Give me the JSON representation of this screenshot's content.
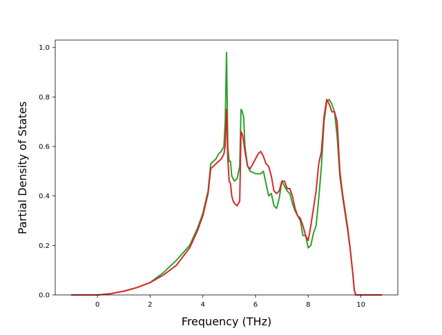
{
  "chart_data": {
    "type": "line",
    "xlabel": "Frequency (THz)",
    "ylabel": "Partial Density of States",
    "xlim": [
      -1.6,
      11.4
    ],
    "ylim": [
      0.0,
      1.03
    ],
    "x_ticks": [
      "0",
      "2",
      "4",
      "6",
      "8",
      "10"
    ],
    "y_ticks": [
      "0.0",
      "0.2",
      "0.4",
      "0.6",
      "0.8",
      "1.0"
    ],
    "grid": false,
    "legend": "none",
    "series": [
      {
        "color": "#2ca02c",
        "x": [
          -1.0,
          0.0,
          0.5,
          1.0,
          1.5,
          2.0,
          2.5,
          3.0,
          3.5,
          3.8,
          4.0,
          4.2,
          4.3,
          4.4,
          4.5,
          4.6,
          4.7,
          4.8,
          4.85,
          4.9,
          4.95,
          5.0,
          5.05,
          5.1,
          5.2,
          5.3,
          5.4,
          5.45,
          5.5,
          5.55,
          5.6,
          5.7,
          5.8,
          6.0,
          6.2,
          6.3,
          6.4,
          6.5,
          6.6,
          6.7,
          6.8,
          6.9,
          7.0,
          7.1,
          7.2,
          7.3,
          7.4,
          7.5,
          7.6,
          7.7,
          7.8,
          7.9,
          8.0,
          8.1,
          8.2,
          8.3,
          8.4,
          8.5,
          8.6,
          8.7,
          8.8,
          8.9,
          9.0,
          9.1,
          9.2,
          9.3,
          9.4,
          9.5,
          9.6,
          9.7,
          9.75,
          9.8,
          9.9,
          10.0,
          10.8
        ],
        "y": [
          0.0,
          0.0,
          0.005,
          0.015,
          0.03,
          0.05,
          0.09,
          0.14,
          0.2,
          0.27,
          0.33,
          0.42,
          0.53,
          0.54,
          0.55,
          0.57,
          0.58,
          0.6,
          0.7,
          0.98,
          0.6,
          0.54,
          0.54,
          0.48,
          0.46,
          0.47,
          0.52,
          0.75,
          0.74,
          0.72,
          0.6,
          0.52,
          0.5,
          0.49,
          0.49,
          0.5,
          0.45,
          0.4,
          0.41,
          0.36,
          0.35,
          0.39,
          0.46,
          0.44,
          0.42,
          0.41,
          0.37,
          0.34,
          0.32,
          0.3,
          0.24,
          0.24,
          0.19,
          0.2,
          0.25,
          0.28,
          0.39,
          0.52,
          0.7,
          0.78,
          0.79,
          0.77,
          0.74,
          0.64,
          0.48,
          0.4,
          0.33,
          0.26,
          0.18,
          0.08,
          0.02,
          0.0,
          0.0,
          0.0,
          0.0
        ]
      },
      {
        "color": "#d62728",
        "x": [
          -1.0,
          0.0,
          0.5,
          1.0,
          1.5,
          2.0,
          2.5,
          3.0,
          3.5,
          3.8,
          4.0,
          4.2,
          4.3,
          4.4,
          4.5,
          4.6,
          4.7,
          4.8,
          4.85,
          4.9,
          4.95,
          5.0,
          5.05,
          5.1,
          5.15,
          5.2,
          5.3,
          5.4,
          5.45,
          5.5,
          5.55,
          5.6,
          5.7,
          5.8,
          6.0,
          6.1,
          6.2,
          6.3,
          6.4,
          6.5,
          6.6,
          6.7,
          6.8,
          6.9,
          7.0,
          7.1,
          7.2,
          7.3,
          7.4,
          7.5,
          7.6,
          7.7,
          7.8,
          7.9,
          8.0,
          8.1,
          8.2,
          8.3,
          8.4,
          8.5,
          8.6,
          8.7,
          8.8,
          8.9,
          9.0,
          9.1,
          9.2,
          9.3,
          9.4,
          9.5,
          9.6,
          9.7,
          9.75,
          9.8,
          9.9,
          10.0,
          10.8
        ],
        "y": [
          0.0,
          0.0,
          0.005,
          0.015,
          0.03,
          0.05,
          0.08,
          0.12,
          0.19,
          0.26,
          0.32,
          0.41,
          0.51,
          0.52,
          0.53,
          0.54,
          0.55,
          0.57,
          0.6,
          0.75,
          0.55,
          0.46,
          0.45,
          0.4,
          0.38,
          0.37,
          0.36,
          0.38,
          0.66,
          0.65,
          0.62,
          0.58,
          0.52,
          0.51,
          0.55,
          0.57,
          0.58,
          0.56,
          0.53,
          0.52,
          0.48,
          0.42,
          0.41,
          0.42,
          0.46,
          0.46,
          0.43,
          0.43,
          0.4,
          0.35,
          0.32,
          0.31,
          0.28,
          0.24,
          0.22,
          0.28,
          0.35,
          0.42,
          0.53,
          0.58,
          0.72,
          0.79,
          0.77,
          0.74,
          0.74,
          0.7,
          0.5,
          0.41,
          0.34,
          0.27,
          0.18,
          0.08,
          0.02,
          0.0,
          0.0,
          0.0,
          0.0
        ]
      }
    ]
  }
}
